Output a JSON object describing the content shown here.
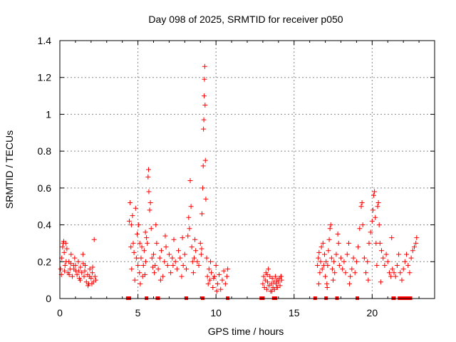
{
  "chart_data": {
    "type": "scatter",
    "title": "Day 098 of 2025, SRMTID for receiver p050",
    "xlabel": "GPS time / hours",
    "ylabel": "SRMTID / TECUs",
    "xlim": [
      0,
      24
    ],
    "ylim": [
      0,
      1.4
    ],
    "xticks": [
      0,
      5,
      10,
      15,
      20
    ],
    "xtick_labels": [
      "0",
      "5",
      "10",
      "15",
      "20"
    ],
    "yticks": [
      0,
      0.2,
      0.4,
      0.6,
      0.8,
      1.0,
      1.2,
      1.4
    ],
    "ytick_labels": [
      "0",
      "0.2",
      "0.4",
      "0.6",
      "0.8",
      "1",
      "1.2",
      "1.4"
    ],
    "grid": true,
    "marker": "+",
    "marker_color": "#ff0000",
    "gap_marker_color": "#ff0000",
    "points": [
      [
        0.05,
        0.16
      ],
      [
        0.12,
        0.22
      ],
      [
        0.18,
        0.28
      ],
      [
        0.22,
        0.3
      ],
      [
        0.28,
        0.25
      ],
      [
        0.33,
        0.18
      ],
      [
        0.38,
        0.3
      ],
      [
        0.45,
        0.27
      ],
      [
        0.52,
        0.14
      ],
      [
        0.58,
        0.2
      ],
      [
        0.65,
        0.16
      ],
      [
        0.72,
        0.24
      ],
      [
        0.8,
        0.12
      ],
      [
        0.88,
        0.18
      ],
      [
        0.95,
        0.22
      ],
      [
        1.02,
        0.15
      ],
      [
        1.1,
        0.13
      ],
      [
        1.18,
        0.2
      ],
      [
        1.25,
        0.11
      ],
      [
        1.32,
        0.17
      ],
      [
        1.4,
        0.14
      ],
      [
        1.48,
        0.24
      ],
      [
        1.55,
        0.12
      ],
      [
        1.62,
        0.18
      ],
      [
        1.7,
        0.09
      ],
      [
        1.78,
        0.13
      ],
      [
        1.85,
        0.08
      ],
      [
        1.92,
        0.16
      ],
      [
        2.0,
        0.11
      ],
      [
        2.08,
        0.14
      ],
      [
        2.15,
        0.09
      ],
      [
        2.2,
        0.32
      ],
      [
        2.25,
        0.12
      ],
      [
        2.3,
        0.1
      ],
      [
        0.1,
        0.13
      ],
      [
        0.4,
        0.2
      ],
      [
        0.7,
        0.19
      ],
      [
        1.0,
        0.18
      ],
      [
        1.3,
        0.1
      ],
      [
        1.6,
        0.15
      ],
      [
        1.9,
        0.12
      ],
      [
        2.1,
        0.17
      ],
      [
        0.3,
        0.15
      ],
      [
        0.6,
        0.13
      ],
      [
        0.9,
        0.16
      ],
      [
        1.2,
        0.15
      ],
      [
        1.5,
        0.19
      ],
      [
        1.8,
        0.07
      ],
      [
        2.05,
        0.08
      ],
      [
        0.25,
        0.31
      ],
      [
        4.45,
        0.42
      ],
      [
        4.5,
        0.52
      ],
      [
        4.55,
        0.28
      ],
      [
        4.6,
        0.16
      ],
      [
        4.65,
        0.45
      ],
      [
        4.7,
        0.3
      ],
      [
        4.75,
        0.25
      ],
      [
        4.8,
        0.1
      ],
      [
        4.85,
        0.49
      ],
      [
        4.9,
        0.22
      ],
      [
        4.95,
        0.35
      ],
      [
        5.0,
        0.18
      ],
      [
        5.05,
        0.4
      ],
      [
        5.1,
        0.14
      ],
      [
        5.15,
        0.08
      ],
      [
        5.2,
        0.22
      ],
      [
        5.25,
        0.28
      ],
      [
        5.3,
        0.12
      ],
      [
        5.35,
        0.18
      ],
      [
        5.4,
        0.26
      ],
      [
        5.45,
        0.13
      ],
      [
        5.5,
        0.2
      ],
      [
        5.55,
        0.33
      ],
      [
        5.6,
        0.3
      ],
      [
        5.65,
        0.66
      ],
      [
        5.68,
        0.7
      ],
      [
        5.7,
        0.58
      ],
      [
        5.75,
        0.48
      ],
      [
        5.8,
        0.52
      ],
      [
        5.85,
        0.38
      ],
      [
        5.9,
        0.22
      ],
      [
        5.95,
        0.17
      ],
      [
        6.0,
        0.24
      ],
      [
        6.05,
        0.14
      ],
      [
        6.1,
        0.18
      ],
      [
        6.2,
        0.3
      ],
      [
        6.3,
        0.16
      ],
      [
        6.4,
        0.22
      ],
      [
        6.5,
        0.26
      ],
      [
        6.6,
        0.12
      ],
      [
        6.7,
        0.2
      ],
      [
        6.8,
        0.28
      ],
      [
        6.9,
        0.18
      ],
      [
        7.0,
        0.24
      ],
      [
        7.1,
        0.14
      ],
      [
        7.2,
        0.22
      ],
      [
        7.3,
        0.32
      ],
      [
        7.4,
        0.2
      ],
      [
        7.5,
        0.16
      ],
      [
        7.6,
        0.26
      ],
      [
        7.7,
        0.22
      ],
      [
        7.8,
        0.12
      ],
      [
        7.9,
        0.18
      ],
      [
        8.0,
        0.24
      ],
      [
        8.1,
        0.16
      ],
      [
        8.2,
        0.34
      ],
      [
        8.25,
        0.44
      ],
      [
        8.3,
        0.38
      ],
      [
        8.35,
        0.64
      ],
      [
        8.4,
        0.5
      ],
      [
        8.45,
        0.28
      ],
      [
        8.5,
        0.2
      ],
      [
        8.55,
        0.14
      ],
      [
        8.6,
        0.22
      ],
      [
        8.7,
        0.26
      ],
      [
        8.8,
        0.2
      ],
      [
        8.9,
        0.18
      ],
      [
        9.0,
        0.3
      ],
      [
        9.05,
        0.24
      ],
      [
        9.1,
        0.46
      ],
      [
        9.15,
        0.6
      ],
      [
        9.18,
        0.72
      ],
      [
        9.2,
        0.92
      ],
      [
        9.22,
        0.97
      ],
      [
        9.24,
        1.1
      ],
      [
        9.26,
        1.19
      ],
      [
        9.28,
        1.26
      ],
      [
        9.3,
        1.05
      ],
      [
        9.32,
        0.75
      ],
      [
        9.35,
        0.54
      ],
      [
        9.4,
        0.22
      ],
      [
        9.45,
        0.12
      ],
      [
        9.5,
        0.08
      ],
      [
        9.55,
        0.16
      ],
      [
        9.6,
        0.1
      ],
      [
        9.7,
        0.14
      ],
      [
        9.8,
        0.06
      ],
      [
        9.9,
        0.12
      ],
      [
        10.0,
        0.18
      ],
      [
        10.1,
        0.08
      ],
      [
        10.2,
        0.13
      ],
      [
        10.3,
        0.05
      ],
      [
        10.4,
        0.1
      ],
      [
        10.5,
        0.15
      ],
      [
        10.6,
        0.08
      ],
      [
        10.7,
        0.12
      ],
      [
        10.75,
        0.16
      ],
      [
        9.65,
        0.2
      ],
      [
        9.85,
        0.11
      ],
      [
        10.05,
        0.04
      ],
      [
        4.58,
        0.4
      ],
      [
        5.12,
        0.3
      ],
      [
        5.48,
        0.36
      ],
      [
        6.15,
        0.4
      ],
      [
        6.75,
        0.34
      ],
      [
        7.25,
        0.18
      ],
      [
        7.85,
        0.33
      ],
      [
        8.65,
        0.32
      ],
      [
        9.08,
        0.27
      ],
      [
        6.45,
        0.1
      ],
      [
        13.0,
        0.08
      ],
      [
        13.05,
        0.12
      ],
      [
        13.1,
        0.06
      ],
      [
        13.15,
        0.1
      ],
      [
        13.2,
        0.14
      ],
      [
        13.25,
        0.05
      ],
      [
        13.3,
        0.09
      ],
      [
        13.35,
        0.16
      ],
      [
        13.4,
        0.07
      ],
      [
        13.45,
        0.12
      ],
      [
        13.5,
        0.04
      ],
      [
        13.55,
        0.08
      ],
      [
        13.6,
        0.11
      ],
      [
        13.65,
        0.06
      ],
      [
        13.7,
        0.09
      ],
      [
        13.75,
        0.05
      ],
      [
        13.8,
        0.12
      ],
      [
        13.85,
        0.08
      ],
      [
        13.9,
        0.1
      ],
      [
        13.95,
        0.06
      ],
      [
        14.0,
        0.09
      ],
      [
        14.05,
        0.11
      ],
      [
        14.1,
        0.07
      ],
      [
        14.15,
        0.12
      ],
      [
        14.2,
        0.1
      ],
      [
        13.28,
        0.13
      ],
      [
        13.58,
        0.04
      ],
      [
        13.88,
        0.06
      ],
      [
        14.18,
        0.12
      ],
      [
        16.5,
        0.18
      ],
      [
        16.55,
        0.22
      ],
      [
        16.6,
        0.25
      ],
      [
        16.65,
        0.14
      ],
      [
        16.7,
        0.2
      ],
      [
        16.75,
        0.28
      ],
      [
        16.8,
        0.16
      ],
      [
        16.85,
        0.3
      ],
      [
        16.9,
        0.18
      ],
      [
        16.95,
        0.24
      ],
      [
        17.0,
        0.12
      ],
      [
        17.05,
        0.2
      ],
      [
        17.1,
        0.08
      ],
      [
        17.15,
        0.18
      ],
      [
        17.2,
        0.26
      ],
      [
        17.25,
        0.32
      ],
      [
        17.3,
        0.38
      ],
      [
        17.35,
        0.4
      ],
      [
        17.4,
        0.22
      ],
      [
        17.45,
        0.16
      ],
      [
        17.5,
        0.1
      ],
      [
        17.55,
        0.2
      ],
      [
        17.6,
        0.14
      ],
      [
        17.7,
        0.24
      ],
      [
        17.8,
        0.35
      ],
      [
        17.85,
        0.3
      ],
      [
        17.9,
        0.18
      ],
      [
        18.0,
        0.22
      ],
      [
        18.1,
        0.16
      ],
      [
        18.2,
        0.2
      ],
      [
        18.3,
        0.14
      ],
      [
        18.4,
        0.24
      ],
      [
        18.5,
        0.3
      ],
      [
        18.6,
        0.12
      ],
      [
        18.7,
        0.16
      ],
      [
        18.8,
        0.22
      ],
      [
        18.9,
        0.14
      ],
      [
        19.0,
        0.2
      ],
      [
        19.1,
        0.28
      ],
      [
        19.2,
        0.38
      ],
      [
        19.3,
        0.5
      ],
      [
        19.35,
        0.52
      ],
      [
        19.4,
        0.4
      ],
      [
        19.5,
        0.22
      ],
      [
        19.6,
        0.14
      ],
      [
        19.7,
        0.2
      ],
      [
        19.8,
        0.3
      ],
      [
        19.9,
        0.36
      ],
      [
        20.0,
        0.42
      ],
      [
        20.05,
        0.48
      ],
      [
        20.1,
        0.56
      ],
      [
        20.15,
        0.58
      ],
      [
        20.2,
        0.44
      ],
      [
        20.25,
        0.3
      ],
      [
        20.3,
        0.18
      ],
      [
        20.35,
        0.5
      ],
      [
        20.4,
        0.52
      ],
      [
        20.45,
        0.4
      ],
      [
        20.5,
        0.3
      ],
      [
        20.6,
        0.26
      ],
      [
        20.7,
        0.22
      ],
      [
        20.8,
        0.18
      ],
      [
        20.9,
        0.24
      ],
      [
        21.0,
        0.2
      ],
      [
        21.1,
        0.14
      ],
      [
        21.2,
        0.12
      ],
      [
        21.3,
        0.16
      ],
      [
        21.4,
        0.14
      ],
      [
        21.5,
        0.12
      ],
      [
        21.6,
        0.18
      ],
      [
        21.7,
        0.24
      ],
      [
        21.8,
        0.14
      ],
      [
        21.9,
        0.1
      ],
      [
        22.0,
        0.16
      ],
      [
        22.1,
        0.2
      ],
      [
        22.2,
        0.24
      ],
      [
        22.3,
        0.18
      ],
      [
        22.4,
        0.14
      ],
      [
        22.5,
        0.22
      ],
      [
        22.6,
        0.26
      ],
      [
        22.7,
        0.28
      ],
      [
        22.8,
        0.3
      ],
      [
        22.85,
        0.33
      ],
      [
        17.12,
        0.06
      ],
      [
        18.55,
        0.08
      ],
      [
        19.75,
        0.1
      ],
      [
        20.55,
        0.09
      ],
      [
        21.25,
        0.33
      ],
      [
        16.58,
        0.08
      ]
    ],
    "gap_markers_x": [
      4.35,
      4.45,
      5.55,
      6.25,
      6.3,
      8.1,
      9.15,
      10.75,
      12.9,
      13.0,
      13.7,
      13.8,
      16.35,
      17.05,
      17.75,
      19.05,
      21.35,
      21.4,
      21.75,
      21.85,
      22.0,
      22.05,
      22.1,
      22.15,
      22.35,
      22.45
    ]
  }
}
